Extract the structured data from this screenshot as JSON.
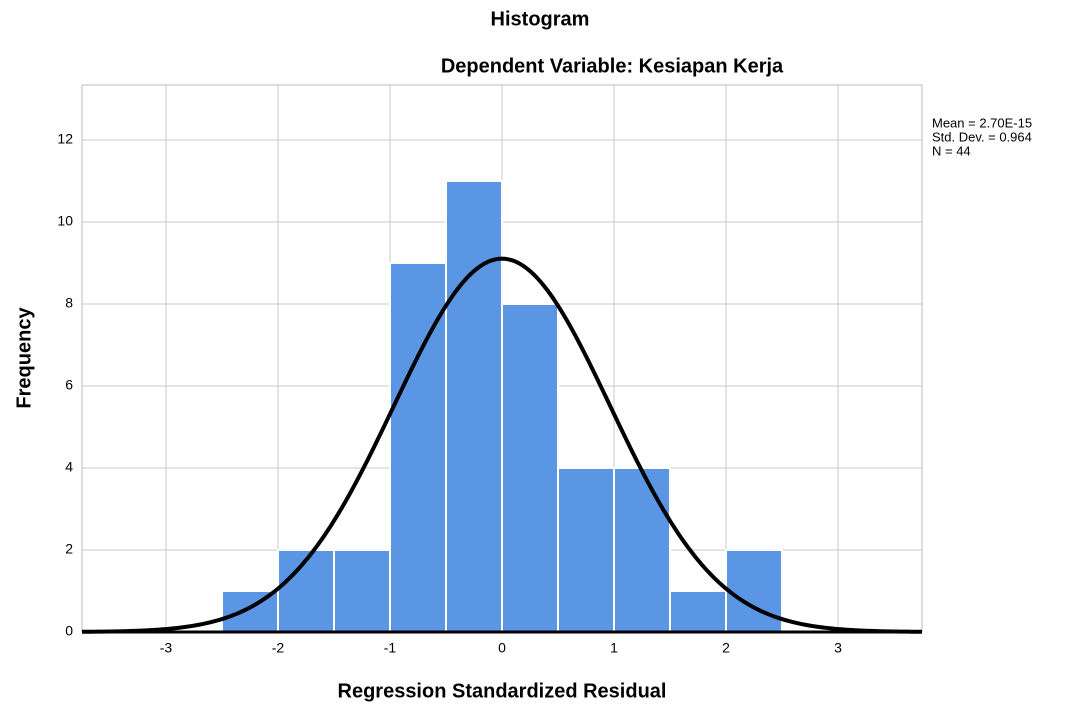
{
  "chart_data": {
    "type": "histogram",
    "title": "Histogram",
    "subtitle": "Dependent Variable: Kesiapan Kerja",
    "xlabel": "Regression Standardized Residual",
    "ylabel": "Frequency",
    "bins": [
      -2.5,
      -2,
      -1.5,
      -1,
      -0.5,
      0,
      0.5,
      1,
      1.5,
      2,
      2.5
    ],
    "values": [
      1,
      2,
      2,
      9,
      11,
      8,
      4,
      4,
      1,
      2
    ],
    "color": "#5a96e3",
    "xlim": [
      -3.75,
      3.75
    ],
    "xticks": [
      -3,
      -2,
      -1,
      0,
      1,
      2,
      3
    ],
    "ylim": [
      0,
      13.34
    ],
    "yticks": [
      0,
      2,
      4,
      6,
      8,
      10,
      12
    ],
    "grid": true,
    "mean": 2.7e-15,
    "std_dev": 0.964,
    "n": 44,
    "stats_text": [
      "Mean = 2.70E-15",
      "Std. Dev. = 0.964",
      "N = 44"
    ]
  }
}
